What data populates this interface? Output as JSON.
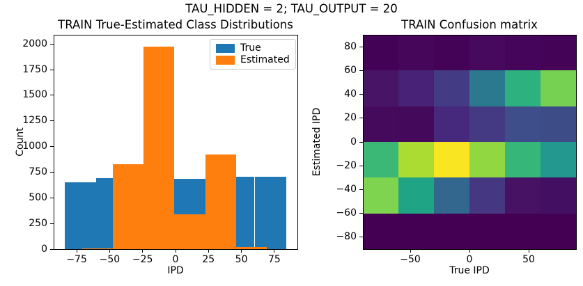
{
  "figure": {
    "suptitle": "TAU_HIDDEN = 2; TAU_OUTPUT = 20",
    "background": "#ffffff"
  },
  "chart_data": [
    {
      "type": "bar",
      "id": "train-class-distributions",
      "title": "TRAIN True-Estimated Class Distributions",
      "xlabel": "IPD",
      "ylabel": "Count",
      "xlim": [
        -92.5,
        92.5
      ],
      "ylim": [
        0,
        2090
      ],
      "grid": false,
      "xticks": {
        "values": [
          -75,
          -50,
          -25,
          0,
          25,
          50,
          75
        ],
        "labels": [
          "−75",
          "−50",
          "−25",
          "0",
          "25",
          "50",
          "75"
        ]
      },
      "yticks": {
        "values": [
          0,
          250,
          500,
          750,
          1000,
          1250,
          1500,
          1750,
          2000
        ],
        "labels": [
          "0",
          "250",
          "500",
          "750",
          "1000",
          "1250",
          "1500",
          "1750",
          "2000"
        ]
      },
      "series": [
        {
          "name": "True",
          "color": "#1f77b4",
          "bin_edges": [
            -84,
            -60,
            -36,
            -12,
            12,
            36,
            60,
            84
          ],
          "counts": [
            650,
            690,
            690,
            685,
            685,
            705,
            705
          ]
        },
        {
          "name": "Estimated",
          "color": "#ff7f0e",
          "bin_edges": [
            -71,
            -47.6,
            -24.2,
            -0.8,
            22.6,
            46,
            69.4
          ],
          "counts": [
            10,
            830,
            1975,
            340,
            925,
            20
          ]
        }
      ],
      "legend": {
        "position": "upper right",
        "entries": [
          "True",
          "Estimated"
        ]
      }
    },
    {
      "type": "heatmap",
      "id": "train-confusion-matrix",
      "title": "TRAIN Confusion matrix",
      "xlabel": "True IPD",
      "ylabel": "Estimated IPD",
      "xlim": [
        -90,
        90
      ],
      "ylim": [
        -90,
        90
      ],
      "colormap": "viridis",
      "xticks": {
        "values": [
          -50,
          0,
          50
        ],
        "labels": [
          "−50",
          "0",
          "50"
        ]
      },
      "yticks": {
        "values": [
          80,
          60,
          40,
          20,
          0,
          -20,
          -40,
          -60,
          -80
        ],
        "labels": [
          "80",
          "60",
          "40",
          "20",
          "0",
          "−20",
          "−40",
          "−60",
          "−80"
        ]
      },
      "col_edges_true_ipd": [
        -90,
        -60,
        -30,
        0,
        30,
        60,
        90
      ],
      "row_edges_estimated_ipd_top_to_bottom": [
        90,
        60,
        30,
        0,
        -30,
        -60,
        -90
      ],
      "values_norm_rows_top_to_bottom": [
        [
          0.02,
          0.03,
          0.02,
          0.04,
          0.03,
          0.02
        ],
        [
          0.08,
          0.12,
          0.22,
          0.56,
          0.68,
          0.8
        ],
        [
          0.04,
          0.04,
          0.15,
          0.21,
          0.27,
          0.26
        ],
        [
          0.72,
          0.88,
          0.98,
          0.84,
          0.7,
          0.57
        ],
        [
          0.81,
          0.64,
          0.45,
          0.21,
          0.08,
          0.06
        ],
        [
          0.0,
          0.0,
          0.0,
          0.0,
          0.0,
          0.0
        ]
      ],
      "cell_colors_rows_top_to_bottom": [
        [
          "#440256",
          "#46065a",
          "#440357",
          "#46095d",
          "#45055a",
          "#440357"
        ],
        [
          "#471466",
          "#472277",
          "#433c84",
          "#2a798e",
          "#2db17e",
          "#76d153"
        ],
        [
          "#450a5c",
          "#45095b",
          "#46287c",
          "#443a83",
          "#3e4e8b",
          "#3d4c87"
        ],
        [
          "#3bb875",
          "#abdc32",
          "#f9e621",
          "#90d742",
          "#36b679",
          "#23988e"
        ],
        [
          "#7ed34f",
          "#20a486",
          "#33678d",
          "#453781",
          "#471164",
          "#430f62"
        ],
        [
          "#440154",
          "#440154",
          "#440154",
          "#440154",
          "#440154",
          "#440154"
        ]
      ]
    }
  ]
}
